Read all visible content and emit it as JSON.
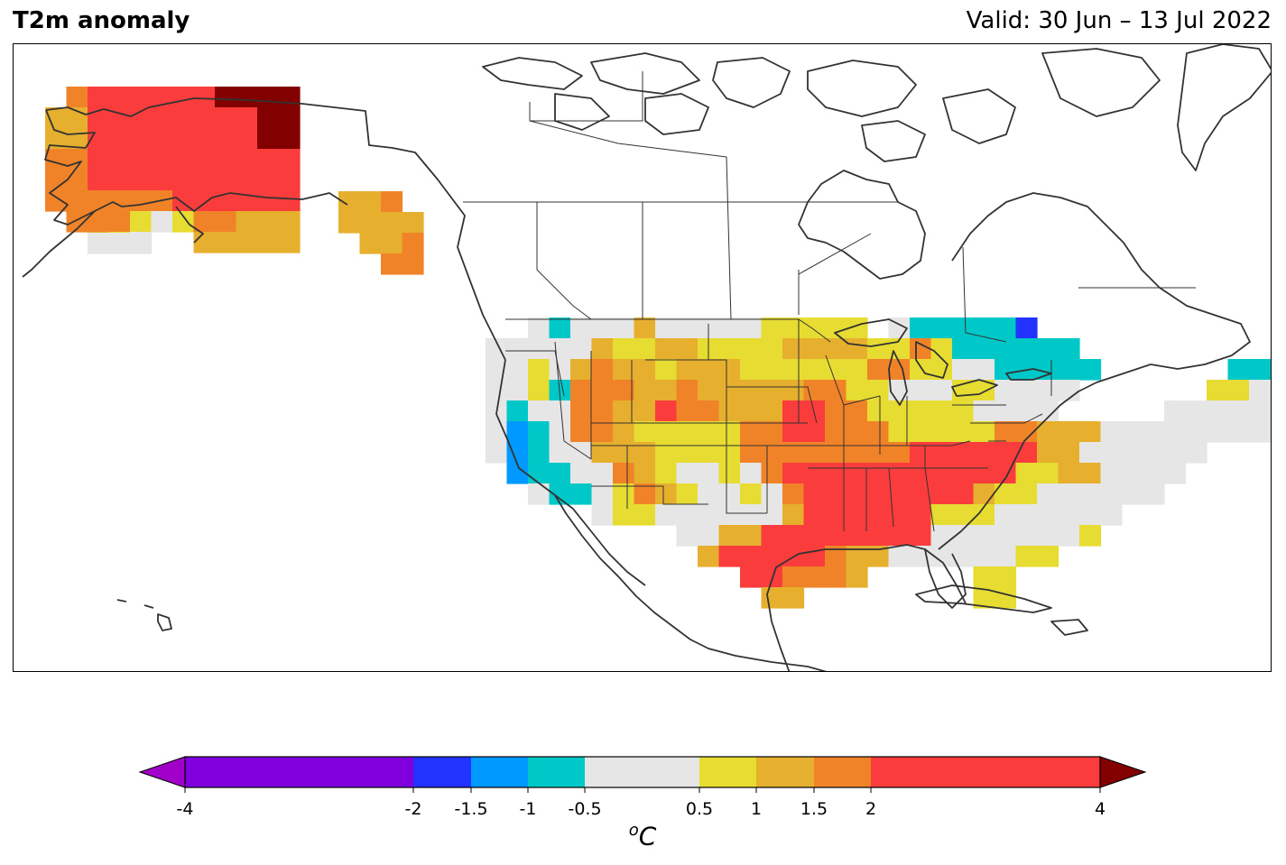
{
  "header": {
    "title": "T2m anomaly",
    "valid": "Valid: 30 Jun – 13 Jul 2022"
  },
  "colorbar": {
    "unit_base": "C",
    "unit_sup": "o",
    "ticks": [
      "-4",
      "-2",
      "-1.5",
      "-1",
      "-0.5",
      "0.5",
      "1",
      "1.5",
      "2",
      "4"
    ],
    "tick_values": [
      -4,
      -2,
      -1.5,
      -1,
      -0.5,
      0.5,
      1,
      1.5,
      2,
      4
    ],
    "bins": [
      {
        "from": -4,
        "to": -2,
        "color": "#7f00dd"
      },
      {
        "from": -2,
        "to": -1.5,
        "color": "#2233ff"
      },
      {
        "from": -1.5,
        "to": -1,
        "color": "#0099ff"
      },
      {
        "from": -1,
        "to": -0.5,
        "color": "#00c8c8"
      },
      {
        "from": -0.5,
        "to": 0.5,
        "color": "#e6e6e6"
      },
      {
        "from": 0.5,
        "to": 1,
        "color": "#e6dc32"
      },
      {
        "from": 1,
        "to": 1.5,
        "color": "#e6af2d"
      },
      {
        "from": 1.5,
        "to": 2,
        "color": "#f08228"
      },
      {
        "from": 2,
        "to": 4,
        "color": "#fa3c3c"
      }
    ],
    "under_color": "#a000c8",
    "over_color": "#820000"
  },
  "map": {
    "region": "North America",
    "palette": {
      "neg2": "#2233ff",
      "neg15": "#0099ff",
      "neg1": "#00c8c8",
      "neutral": "#e6e6e6",
      "p05": "#e6dc32",
      "p1": "#e6af2d",
      "p15": "#f08228",
      "p2": "#fa3c3c",
      "p4": "#820000",
      "coast": "#333333"
    }
  }
}
